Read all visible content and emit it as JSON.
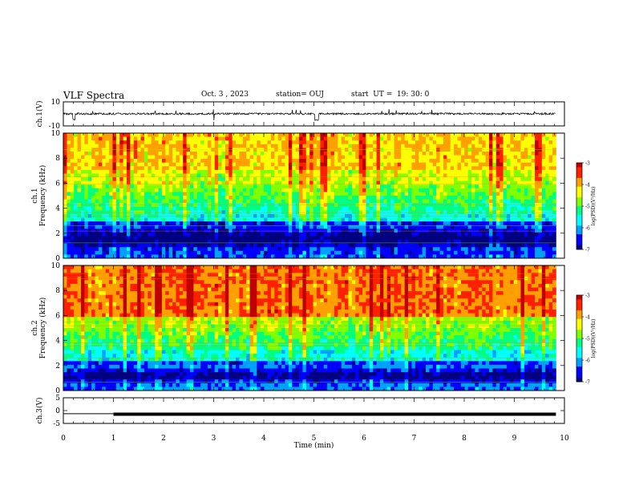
{
  "header": {
    "title": "VLF Spectra",
    "date": "Oct. 3 , 2023",
    "station": "station= OUJ",
    "start": "start  UT =  19: 30: 0"
  },
  "chart_data": [
    {
      "type": "line",
      "id": "ch1-waveform",
      "ylabel": "ch.1(V)",
      "ylim": [
        -10,
        10
      ],
      "y_ticks": [
        "10",
        "-10"
      ],
      "xlim": [
        0,
        10
      ],
      "series": [
        {
          "values_summary": "noisy waveform centered near 0 V (slightly positive), amplitude about ±1 V with short negative spikes up to about -5 V near t ≈ 0.2, 3.0, 5.05 min",
          "color": "#000000"
        }
      ]
    },
    {
      "type": "heatmap",
      "id": "ch1-spectrogram",
      "ylabel": "ch.1 Frequency  (kHz)",
      "ylim": [
        0,
        10
      ],
      "y_ticks": [
        "0",
        "2",
        "4",
        "6",
        "8",
        "10"
      ],
      "xlim": [
        0,
        10
      ],
      "data_end_min": 9.83,
      "description": "log PSD: dark blue bands 0.5–2.8 kHz, cyan/green 3–6 kHz, yellow/red above 6 kHz with vertical sferic streaks",
      "colorbar": {
        "label": "log(PSD)(V²/Hz)",
        "range": [
          -7,
          -3
        ],
        "ticks": [
          "-3",
          "-4",
          "-5",
          "-6",
          "-7"
        ]
      }
    },
    {
      "type": "heatmap",
      "id": "ch2-spectrogram",
      "ylabel": "ch.2 Frequency  (kHz)",
      "ylim": [
        0,
        10
      ],
      "y_ticks": [
        "0",
        "2",
        "4",
        "6",
        "8",
        "10"
      ],
      "xlim": [
        0,
        10
      ],
      "data_end_min": 9.83,
      "description": "log PSD: dark blue bands 0.5–2.5 kHz, green/cyan 2.5–6 kHz, red/orange above 6 kHz (stronger than ch.1)",
      "colorbar": {
        "label": "log(PSD)(V²/Hz)",
        "range": [
          -7,
          -3
        ],
        "ticks": [
          "-3",
          "-4",
          "-5",
          "-6",
          "-7"
        ]
      }
    },
    {
      "type": "line",
      "id": "ch3-level",
      "ylabel": "ch.3(V)",
      "ylim": [
        -5,
        5
      ],
      "y_ticks": [
        "5",
        "0",
        "-5"
      ],
      "xlim": [
        0,
        10
      ],
      "series": [
        {
          "x": [
            0,
            1,
            1,
            9.83
          ],
          "y": [
            -1.2,
            -1.2,
            -1.4,
            -1.4
          ],
          "color": "#000000"
        }
      ]
    }
  ],
  "time_axis": {
    "label": "Time  (min)",
    "ticks": [
      "0",
      "1",
      "2",
      "3",
      "4",
      "5",
      "6",
      "7",
      "8",
      "9",
      "10"
    ]
  },
  "colors": {
    "colormap": [
      "#000080",
      "#0000ff",
      "#00a0ff",
      "#00ffff",
      "#00ff80",
      "#80ff00",
      "#ffff00",
      "#ffa000",
      "#ff2000",
      "#c00000"
    ],
    "axis": "#000000",
    "background": "#ffffff"
  }
}
